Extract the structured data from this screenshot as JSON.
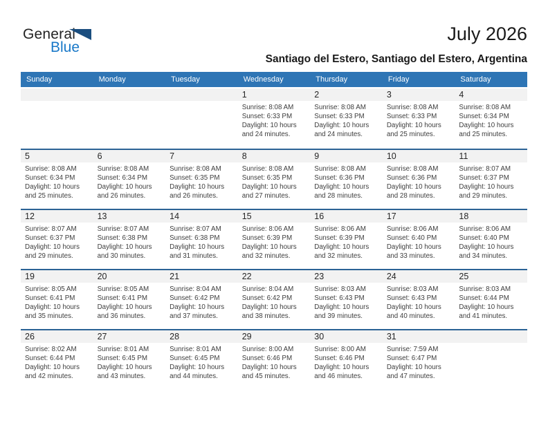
{
  "logo": {
    "part1": "General",
    "part2": "Blue",
    "triangle_icon": "blue-flag-triangle"
  },
  "header": {
    "title": "July 2026",
    "subtitle": "Santiago del Estero, Santiago del Estero, Argentina"
  },
  "colors": {
    "weekday_header_bg": "#2E75B5",
    "week_separator": "#2B6295",
    "day_band_bg": "#F2F2F2",
    "logo_blue_text": "#1878C8",
    "logo_triangle": "#1B4E7F",
    "body_text": "#3D3D3D"
  },
  "weekdays": [
    "Sunday",
    "Monday",
    "Tuesday",
    "Wednesday",
    "Thursday",
    "Friday",
    "Saturday"
  ],
  "weeks": [
    [
      null,
      null,
      null,
      {
        "day": "1",
        "sunrise": "Sunrise: 8:08 AM",
        "sunset": "Sunset: 6:33 PM",
        "daylight1": "Daylight: 10 hours",
        "daylight2": "and 24 minutes."
      },
      {
        "day": "2",
        "sunrise": "Sunrise: 8:08 AM",
        "sunset": "Sunset: 6:33 PM",
        "daylight1": "Daylight: 10 hours",
        "daylight2": "and 24 minutes."
      },
      {
        "day": "3",
        "sunrise": "Sunrise: 8:08 AM",
        "sunset": "Sunset: 6:33 PM",
        "daylight1": "Daylight: 10 hours",
        "daylight2": "and 25 minutes."
      },
      {
        "day": "4",
        "sunrise": "Sunrise: 8:08 AM",
        "sunset": "Sunset: 6:34 PM",
        "daylight1": "Daylight: 10 hours",
        "daylight2": "and 25 minutes."
      }
    ],
    [
      {
        "day": "5",
        "sunrise": "Sunrise: 8:08 AM",
        "sunset": "Sunset: 6:34 PM",
        "daylight1": "Daylight: 10 hours",
        "daylight2": "and 25 minutes."
      },
      {
        "day": "6",
        "sunrise": "Sunrise: 8:08 AM",
        "sunset": "Sunset: 6:34 PM",
        "daylight1": "Daylight: 10 hours",
        "daylight2": "and 26 minutes."
      },
      {
        "day": "7",
        "sunrise": "Sunrise: 8:08 AM",
        "sunset": "Sunset: 6:35 PM",
        "daylight1": "Daylight: 10 hours",
        "daylight2": "and 26 minutes."
      },
      {
        "day": "8",
        "sunrise": "Sunrise: 8:08 AM",
        "sunset": "Sunset: 6:35 PM",
        "daylight1": "Daylight: 10 hours",
        "daylight2": "and 27 minutes."
      },
      {
        "day": "9",
        "sunrise": "Sunrise: 8:08 AM",
        "sunset": "Sunset: 6:36 PM",
        "daylight1": "Daylight: 10 hours",
        "daylight2": "and 28 minutes."
      },
      {
        "day": "10",
        "sunrise": "Sunrise: 8:08 AM",
        "sunset": "Sunset: 6:36 PM",
        "daylight1": "Daylight: 10 hours",
        "daylight2": "and 28 minutes."
      },
      {
        "day": "11",
        "sunrise": "Sunrise: 8:07 AM",
        "sunset": "Sunset: 6:37 PM",
        "daylight1": "Daylight: 10 hours",
        "daylight2": "and 29 minutes."
      }
    ],
    [
      {
        "day": "12",
        "sunrise": "Sunrise: 8:07 AM",
        "sunset": "Sunset: 6:37 PM",
        "daylight1": "Daylight: 10 hours",
        "daylight2": "and 29 minutes."
      },
      {
        "day": "13",
        "sunrise": "Sunrise: 8:07 AM",
        "sunset": "Sunset: 6:38 PM",
        "daylight1": "Daylight: 10 hours",
        "daylight2": "and 30 minutes."
      },
      {
        "day": "14",
        "sunrise": "Sunrise: 8:07 AM",
        "sunset": "Sunset: 6:38 PM",
        "daylight1": "Daylight: 10 hours",
        "daylight2": "and 31 minutes."
      },
      {
        "day": "15",
        "sunrise": "Sunrise: 8:06 AM",
        "sunset": "Sunset: 6:39 PM",
        "daylight1": "Daylight: 10 hours",
        "daylight2": "and 32 minutes."
      },
      {
        "day": "16",
        "sunrise": "Sunrise: 8:06 AM",
        "sunset": "Sunset: 6:39 PM",
        "daylight1": "Daylight: 10 hours",
        "daylight2": "and 32 minutes."
      },
      {
        "day": "17",
        "sunrise": "Sunrise: 8:06 AM",
        "sunset": "Sunset: 6:40 PM",
        "daylight1": "Daylight: 10 hours",
        "daylight2": "and 33 minutes."
      },
      {
        "day": "18",
        "sunrise": "Sunrise: 8:06 AM",
        "sunset": "Sunset: 6:40 PM",
        "daylight1": "Daylight: 10 hours",
        "daylight2": "and 34 minutes."
      }
    ],
    [
      {
        "day": "19",
        "sunrise": "Sunrise: 8:05 AM",
        "sunset": "Sunset: 6:41 PM",
        "daylight1": "Daylight: 10 hours",
        "daylight2": "and 35 minutes."
      },
      {
        "day": "20",
        "sunrise": "Sunrise: 8:05 AM",
        "sunset": "Sunset: 6:41 PM",
        "daylight1": "Daylight: 10 hours",
        "daylight2": "and 36 minutes."
      },
      {
        "day": "21",
        "sunrise": "Sunrise: 8:04 AM",
        "sunset": "Sunset: 6:42 PM",
        "daylight1": "Daylight: 10 hours",
        "daylight2": "and 37 minutes."
      },
      {
        "day": "22",
        "sunrise": "Sunrise: 8:04 AM",
        "sunset": "Sunset: 6:42 PM",
        "daylight1": "Daylight: 10 hours",
        "daylight2": "and 38 minutes."
      },
      {
        "day": "23",
        "sunrise": "Sunrise: 8:03 AM",
        "sunset": "Sunset: 6:43 PM",
        "daylight1": "Daylight: 10 hours",
        "daylight2": "and 39 minutes."
      },
      {
        "day": "24",
        "sunrise": "Sunrise: 8:03 AM",
        "sunset": "Sunset: 6:43 PM",
        "daylight1": "Daylight: 10 hours",
        "daylight2": "and 40 minutes."
      },
      {
        "day": "25",
        "sunrise": "Sunrise: 8:03 AM",
        "sunset": "Sunset: 6:44 PM",
        "daylight1": "Daylight: 10 hours",
        "daylight2": "and 41 minutes."
      }
    ],
    [
      {
        "day": "26",
        "sunrise": "Sunrise: 8:02 AM",
        "sunset": "Sunset: 6:44 PM",
        "daylight1": "Daylight: 10 hours",
        "daylight2": "and 42 minutes."
      },
      {
        "day": "27",
        "sunrise": "Sunrise: 8:01 AM",
        "sunset": "Sunset: 6:45 PM",
        "daylight1": "Daylight: 10 hours",
        "daylight2": "and 43 minutes."
      },
      {
        "day": "28",
        "sunrise": "Sunrise: 8:01 AM",
        "sunset": "Sunset: 6:45 PM",
        "daylight1": "Daylight: 10 hours",
        "daylight2": "and 44 minutes."
      },
      {
        "day": "29",
        "sunrise": "Sunrise: 8:00 AM",
        "sunset": "Sunset: 6:46 PM",
        "daylight1": "Daylight: 10 hours",
        "daylight2": "and 45 minutes."
      },
      {
        "day": "30",
        "sunrise": "Sunrise: 8:00 AM",
        "sunset": "Sunset: 6:46 PM",
        "daylight1": "Daylight: 10 hours",
        "daylight2": "and 46 minutes."
      },
      {
        "day": "31",
        "sunrise": "Sunrise: 7:59 AM",
        "sunset": "Sunset: 6:47 PM",
        "daylight1": "Daylight: 10 hours",
        "daylight2": "and 47 minutes."
      },
      null
    ]
  ]
}
